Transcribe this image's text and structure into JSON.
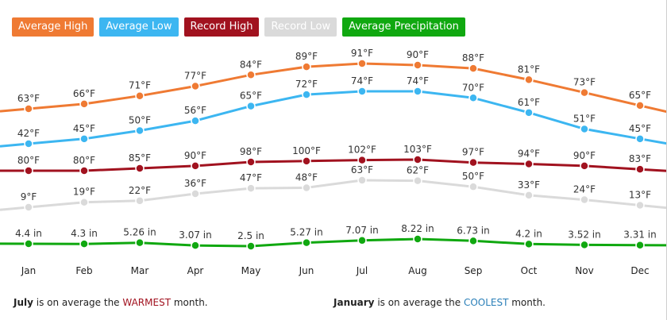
{
  "legend": [
    {
      "label": "Average High",
      "color": "#ef7a33"
    },
    {
      "label": "Average Low",
      "color": "#3cb6f1"
    },
    {
      "label": "Record High",
      "color": "#a1121f"
    },
    {
      "label": "Record Low",
      "color": "#dadada"
    },
    {
      "label": "Average Precipitation",
      "color": "#10a810"
    }
  ],
  "chart_data": {
    "type": "line",
    "categories": [
      "Jan",
      "Feb",
      "Mar",
      "Apr",
      "May",
      "Jun",
      "Jul",
      "Aug",
      "Sep",
      "Oct",
      "Nov",
      "Dec"
    ],
    "grid": false,
    "legend_position": "top-left",
    "series": [
      {
        "name": "Average High",
        "color": "#ef7a33",
        "values": [
          63,
          66,
          71,
          77,
          84,
          89,
          91,
          90,
          88,
          81,
          73,
          65
        ],
        "labels": [
          "63°F",
          "66°F",
          "71°F",
          "77°F",
          "84°F",
          "89°F",
          "91°F",
          "90°F",
          "88°F",
          "81°F",
          "73°F",
          "65°F"
        ]
      },
      {
        "name": "Average Low",
        "color": "#3cb6f1",
        "values": [
          42,
          45,
          50,
          56,
          65,
          72,
          74,
          74,
          70,
          61,
          51,
          45
        ],
        "labels": [
          "42°F",
          "45°F",
          "50°F",
          "56°F",
          "65°F",
          "72°F",
          "74°F",
          "74°F",
          "70°F",
          "61°F",
          "51°F",
          "45°F"
        ]
      },
      {
        "name": "Record High",
        "color": "#a1121f",
        "values": [
          80,
          80,
          85,
          90,
          98,
          100,
          102,
          103,
          97,
          94,
          90,
          83
        ],
        "labels": [
          "80°F",
          "80°F",
          "85°F",
          "90°F",
          "98°F",
          "100°F",
          "102°F",
          "103°F",
          "97°F",
          "94°F",
          "90°F",
          "83°F"
        ]
      },
      {
        "name": "Record Low",
        "color": "#dadada",
        "values": [
          9,
          19,
          22,
          36,
          47,
          48,
          63,
          62,
          50,
          33,
          24,
          13
        ],
        "labels": [
          "9°F",
          "19°F",
          "22°F",
          "36°F",
          "47°F",
          "48°F",
          "63°F",
          "62°F",
          "50°F",
          "33°F",
          "24°F",
          "13°F"
        ]
      },
      {
        "name": "Average Precipitation",
        "color": "#10a810",
        "values": [
          4.4,
          4.3,
          5.26,
          3.07,
          2.5,
          5.27,
          7.07,
          8.22,
          6.73,
          4.2,
          3.52,
          3.31
        ],
        "labels": [
          "4.4 in",
          "4.3 in",
          "5.26 in",
          "3.07 in",
          "2.5 in",
          "5.27 in",
          "7.07 in",
          "8.22 in",
          "6.73 in",
          "4.2 in",
          "3.52 in",
          "3.31 in"
        ]
      }
    ]
  },
  "footer": {
    "left_month": "July",
    "left_text_a": " is on average the ",
    "left_word": "WARMEST",
    "left_text_b": " month.",
    "right_month": "January",
    "right_text_a": " is on average the ",
    "right_word": "COOLEST",
    "right_text_b": " month."
  }
}
